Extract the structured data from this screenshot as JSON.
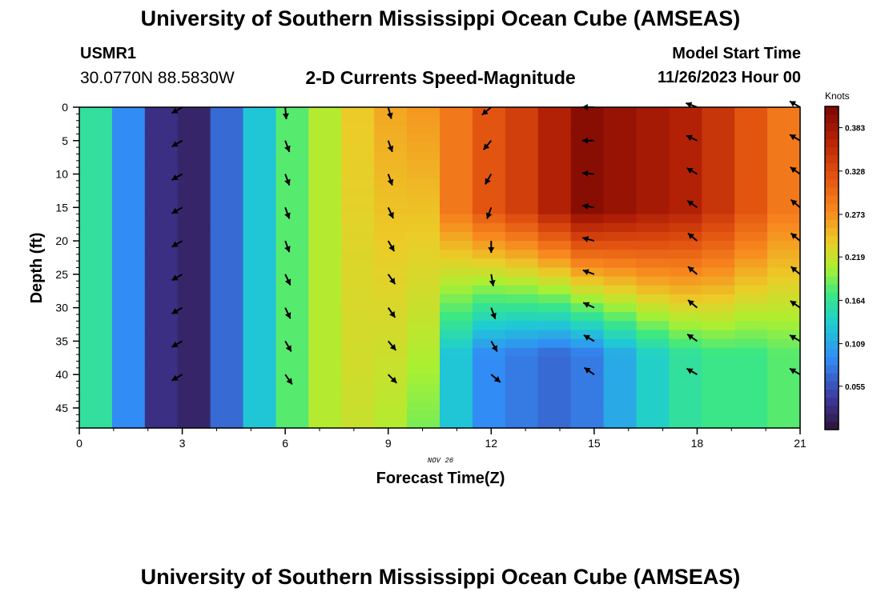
{
  "page": {
    "title": "University of Southern Mississippi Ocean Cube (AMSEAS)",
    "station_id": "USMR1",
    "station_coords": "30.0770N  88.5830W",
    "subtitle": "2-D Currents Speed-Magnitude",
    "model_start_label": "Model Start Time",
    "model_start_value": "11/26/2023 Hour 00",
    "bottom_title": "University of Southern Mississippi Ocean Cube (AMSEAS)"
  },
  "chart_data": {
    "type": "heatmap",
    "title": "2-D Currents Speed-Magnitude",
    "xlabel": "Forecast Time(Z)",
    "ylabel": "Depth (ft)",
    "x_sublabel": "NOV 26",
    "xlim": [
      0,
      21
    ],
    "ylim": [
      0,
      48
    ],
    "x_ticks": [
      0,
      3,
      6,
      9,
      12,
      15,
      18,
      21
    ],
    "y_ticks": [
      0,
      5,
      10,
      15,
      20,
      25,
      30,
      35,
      40,
      45
    ],
    "colorbar": {
      "label": "Knots",
      "range": [
        0.0,
        0.41
      ],
      "ticks": [
        0.055,
        0.109,
        0.164,
        0.219,
        0.273,
        0.328,
        0.383
      ],
      "tick_labels": [
        "0.055",
        "0.109",
        "0.164",
        "0.219",
        "0.273",
        "0.328",
        "0.383"
      ]
    },
    "speed_columns": [
      {
        "hour": 0,
        "surface": 0.16,
        "bottom": 0.16
      },
      {
        "hour": 1,
        "surface": 0.09,
        "bottom": 0.09
      },
      {
        "hour": 2,
        "surface": 0.03,
        "bottom": 0.03
      },
      {
        "hour": 3,
        "surface": 0.02,
        "bottom": 0.02
      },
      {
        "hour": 4,
        "surface": 0.07,
        "bottom": 0.07
      },
      {
        "hour": 5,
        "surface": 0.13,
        "bottom": 0.13
      },
      {
        "hour": 6,
        "surface": 0.18,
        "bottom": 0.18
      },
      {
        "hour": 7,
        "surface": 0.21,
        "bottom": 0.21
      },
      {
        "hour": 8,
        "surface": 0.24,
        "bottom": 0.22
      },
      {
        "hour": 9,
        "surface": 0.26,
        "bottom": 0.21
      },
      {
        "hour": 10,
        "surface": 0.27,
        "bottom": 0.19
      },
      {
        "hour": 11,
        "surface": 0.29,
        "bottom": 0.13
      },
      {
        "hour": 12,
        "surface": 0.32,
        "bottom": 0.09
      },
      {
        "hour": 13,
        "surface": 0.34,
        "bottom": 0.08
      },
      {
        "hour": 14,
        "surface": 0.37,
        "bottom": 0.07
      },
      {
        "hour": 15,
        "surface": 0.4,
        "bottom": 0.08
      },
      {
        "hour": 16,
        "surface": 0.39,
        "bottom": 0.11
      },
      {
        "hour": 17,
        "surface": 0.38,
        "bottom": 0.14
      },
      {
        "hour": 18,
        "surface": 0.37,
        "bottom": 0.16
      },
      {
        "hour": 19,
        "surface": 0.35,
        "bottom": 0.17
      },
      {
        "hour": 20,
        "surface": 0.32,
        "bottom": 0.17
      },
      {
        "hour": 21,
        "surface": 0.29,
        "bottom": 0.18
      }
    ],
    "vector_hours": [
      3,
      6,
      9,
      12,
      15,
      18,
      21
    ],
    "vector_depths": [
      0,
      5,
      10,
      15,
      20,
      25,
      30,
      35,
      40
    ],
    "vector_directions_deg": [
      [
        240,
        240,
        240,
        240,
        240,
        240,
        240,
        240,
        240
      ],
      [
        175,
        160,
        160,
        160,
        160,
        155,
        155,
        150,
        145
      ],
      [
        165,
        160,
        160,
        155,
        150,
        145,
        145,
        140,
        135
      ],
      [
        230,
        220,
        210,
        200,
        180,
        170,
        160,
        150,
        130
      ],
      [
        270,
        270,
        275,
        280,
        285,
        290,
        295,
        300,
        305
      ],
      [
        290,
        295,
        300,
        305,
        310,
        310,
        310,
        305,
        300
      ],
      [
        300,
        300,
        305,
        310,
        310,
        310,
        305,
        300,
        300
      ]
    ],
    "colors": {
      "axis": "#000000",
      "arrow": "#000000"
    }
  }
}
